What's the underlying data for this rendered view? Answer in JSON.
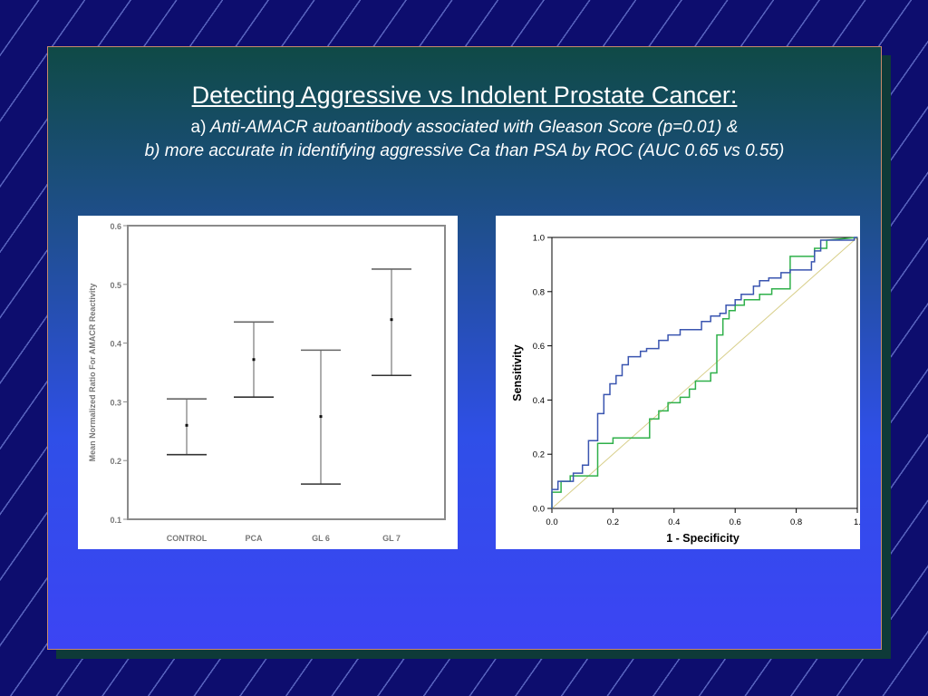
{
  "slide": {
    "title": "Detecting Aggressive vs Indolent Prostate Cancer",
    "title_colon": ":",
    "line_a_prefix": "a)",
    "line_a": "Anti-AMACR autoantibody associated with Gleason Score (p=0.01) &",
    "line_b": "b) more accurate in identifying aggressive Ca than PSA by ROC (AUC 0.65 vs 0.55)"
  },
  "chart_data": [
    {
      "type": "errorbar",
      "ylabel": "Mean Normalized Ratio For AMACR Reactivity",
      "xlabel": "",
      "ylim": [
        0.1,
        0.6
      ],
      "yticks": [
        "0.1",
        "0.2",
        "0.3",
        "0.4",
        "0.5",
        "0.6"
      ],
      "categories": [
        "CONTROL",
        "PCA",
        "GL 6",
        "GL 7"
      ],
      "mean": [
        0.26,
        0.372,
        0.275,
        0.44
      ],
      "lower": [
        0.21,
        0.308,
        0.16,
        0.345
      ],
      "upper": [
        0.305,
        0.436,
        0.388,
        0.526
      ]
    },
    {
      "type": "line",
      "xlabel": "1 - Specificity",
      "ylabel": "Sensitivity",
      "xlim": [
        0,
        1
      ],
      "ylim": [
        0,
        1
      ],
      "xticks": [
        "0.0",
        "0.2",
        "0.4",
        "0.6",
        "0.8",
        "1."
      ],
      "yticks": [
        "0.0",
        "0.2",
        "0.4",
        "0.6",
        "0.8",
        "1.0"
      ],
      "colors": {
        "blue": "#3a55b0",
        "green": "#2fb04a",
        "diagonal": "#d8cf8a"
      },
      "series": [
        {
          "color": "#3a55b0",
          "points": [
            [
              0,
              0
            ],
            [
              0,
              0.07
            ],
            [
              0.02,
              0.07
            ],
            [
              0.02,
              0.1
            ],
            [
              0.07,
              0.1
            ],
            [
              0.07,
              0.13
            ],
            [
              0.1,
              0.13
            ],
            [
              0.1,
              0.16
            ],
            [
              0.12,
              0.16
            ],
            [
              0.12,
              0.25
            ],
            [
              0.15,
              0.25
            ],
            [
              0.15,
              0.35
            ],
            [
              0.17,
              0.35
            ],
            [
              0.17,
              0.42
            ],
            [
              0.19,
              0.42
            ],
            [
              0.19,
              0.46
            ],
            [
              0.21,
              0.46
            ],
            [
              0.21,
              0.49
            ],
            [
              0.23,
              0.49
            ],
            [
              0.23,
              0.53
            ],
            [
              0.25,
              0.53
            ],
            [
              0.25,
              0.56
            ],
            [
              0.29,
              0.56
            ],
            [
              0.29,
              0.58
            ],
            [
              0.31,
              0.58
            ],
            [
              0.31,
              0.59
            ],
            [
              0.35,
              0.59
            ],
            [
              0.35,
              0.62
            ],
            [
              0.38,
              0.62
            ],
            [
              0.38,
              0.64
            ],
            [
              0.42,
              0.64
            ],
            [
              0.42,
              0.66
            ],
            [
              0.49,
              0.66
            ],
            [
              0.49,
              0.69
            ],
            [
              0.52,
              0.69
            ],
            [
              0.52,
              0.71
            ],
            [
              0.55,
              0.71
            ],
            [
              0.55,
              0.72
            ],
            [
              0.57,
              0.72
            ],
            [
              0.57,
              0.75
            ],
            [
              0.6,
              0.75
            ],
            [
              0.6,
              0.77
            ],
            [
              0.62,
              0.77
            ],
            [
              0.62,
              0.79
            ],
            [
              0.66,
              0.79
            ],
            [
              0.66,
              0.82
            ],
            [
              0.68,
              0.82
            ],
            [
              0.68,
              0.84
            ],
            [
              0.71,
              0.84
            ],
            [
              0.71,
              0.85
            ],
            [
              0.75,
              0.85
            ],
            [
              0.75,
              0.87
            ],
            [
              0.78,
              0.87
            ],
            [
              0.78,
              0.88
            ],
            [
              0.85,
              0.88
            ],
            [
              0.85,
              0.91
            ],
            [
              0.86,
              0.91
            ],
            [
              0.86,
              0.95
            ],
            [
              0.88,
              0.95
            ],
            [
              0.88,
              0.99
            ],
            [
              0.99,
              0.99
            ],
            [
              0.99,
              1.0
            ],
            [
              1,
              1
            ]
          ]
        },
        {
          "color": "#2fb04a",
          "points": [
            [
              0,
              0
            ],
            [
              0,
              0.06
            ],
            [
              0.03,
              0.06
            ],
            [
              0.03,
              0.1
            ],
            [
              0.06,
              0.1
            ],
            [
              0.06,
              0.12
            ],
            [
              0.15,
              0.12
            ],
            [
              0.15,
              0.24
            ],
            [
              0.2,
              0.24
            ],
            [
              0.2,
              0.26
            ],
            [
              0.32,
              0.26
            ],
            [
              0.32,
              0.33
            ],
            [
              0.35,
              0.33
            ],
            [
              0.35,
              0.36
            ],
            [
              0.38,
              0.36
            ],
            [
              0.38,
              0.39
            ],
            [
              0.42,
              0.39
            ],
            [
              0.42,
              0.41
            ],
            [
              0.45,
              0.41
            ],
            [
              0.45,
              0.44
            ],
            [
              0.47,
              0.44
            ],
            [
              0.47,
              0.47
            ],
            [
              0.52,
              0.47
            ],
            [
              0.52,
              0.5
            ],
            [
              0.54,
              0.5
            ],
            [
              0.54,
              0.64
            ],
            [
              0.56,
              0.64
            ],
            [
              0.56,
              0.7
            ],
            [
              0.58,
              0.7
            ],
            [
              0.58,
              0.73
            ],
            [
              0.6,
              0.73
            ],
            [
              0.6,
              0.75
            ],
            [
              0.63,
              0.75
            ],
            [
              0.63,
              0.77
            ],
            [
              0.68,
              0.77
            ],
            [
              0.68,
              0.79
            ],
            [
              0.72,
              0.79
            ],
            [
              0.72,
              0.81
            ],
            [
              0.78,
              0.81
            ],
            [
              0.78,
              0.93
            ],
            [
              0.86,
              0.93
            ],
            [
              0.86,
              0.96
            ],
            [
              0.9,
              0.96
            ],
            [
              0.9,
              0.99
            ],
            [
              1,
              1
            ]
          ]
        },
        {
          "color": "#d8cf8a",
          "points": [
            [
              0,
              0
            ],
            [
              1,
              1
            ]
          ]
        }
      ]
    }
  ]
}
